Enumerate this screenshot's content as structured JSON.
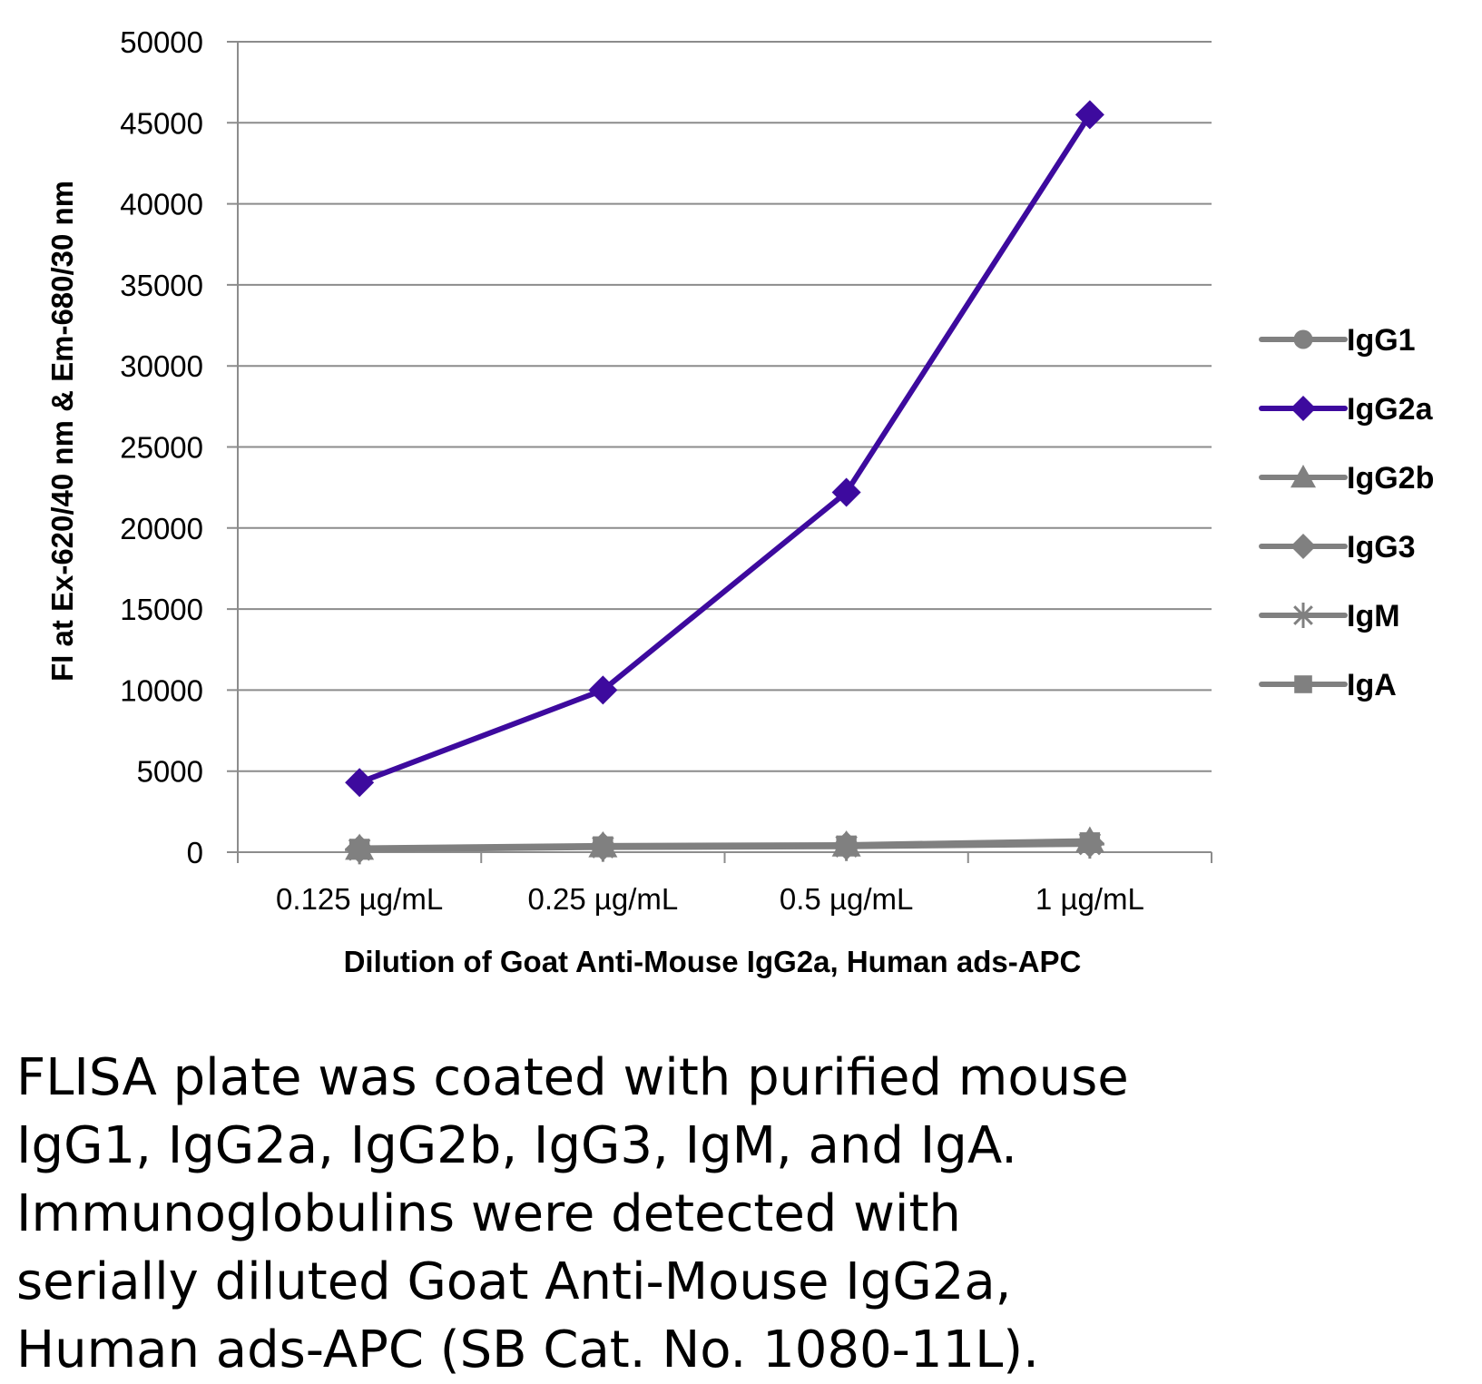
{
  "chart_data": {
    "type": "line",
    "title": "",
    "xlabel": "Dilution of Goat Anti-Mouse IgG2a, Human ads-APC",
    "ylabel": "FI at Ex-620/40 nm & Em-680/30 nm",
    "categories": [
      "0.125 µg/mL",
      "0.25 µg/mL",
      "0.5 µg/mL",
      "1 µg/mL"
    ],
    "ylim": [
      0,
      50000
    ],
    "yticks": [
      "50000",
      "45000",
      "40000",
      "35000",
      "30000",
      "25000",
      "20000",
      "15000",
      "10000",
      "5000",
      "0"
    ],
    "grid": true,
    "legend_position": "right",
    "series": [
      {
        "name": "IgG1",
        "values": [
          200,
          350,
          400,
          550
        ],
        "color": "#808080",
        "marker": "circle"
      },
      {
        "name": "IgG2a",
        "values": [
          4300,
          10000,
          22200,
          45500
        ],
        "color": "#3d0a9e",
        "marker": "diamond"
      },
      {
        "name": "IgG2b",
        "values": [
          250,
          400,
          450,
          700
        ],
        "color": "#808080",
        "marker": "triangle"
      },
      {
        "name": "IgG3",
        "values": [
          200,
          350,
          400,
          550
        ],
        "color": "#808080",
        "marker": "diamond"
      },
      {
        "name": "IgM",
        "values": [
          150,
          300,
          350,
          500
        ],
        "color": "#808080",
        "marker": "star"
      },
      {
        "name": "IgA",
        "values": [
          200,
          350,
          400,
          600
        ],
        "color": "#808080",
        "marker": "square"
      }
    ]
  },
  "caption": {
    "lines": [
      "FLISA plate was coated with purified mouse",
      "IgG1, IgG2a, IgG2b, IgG3, IgM, and IgA.",
      "Immunoglobulins were detected with",
      "serially diluted Goat Anti-Mouse IgG2a,",
      "Human ads-APC (SB Cat. No. 1080-11L)."
    ]
  }
}
